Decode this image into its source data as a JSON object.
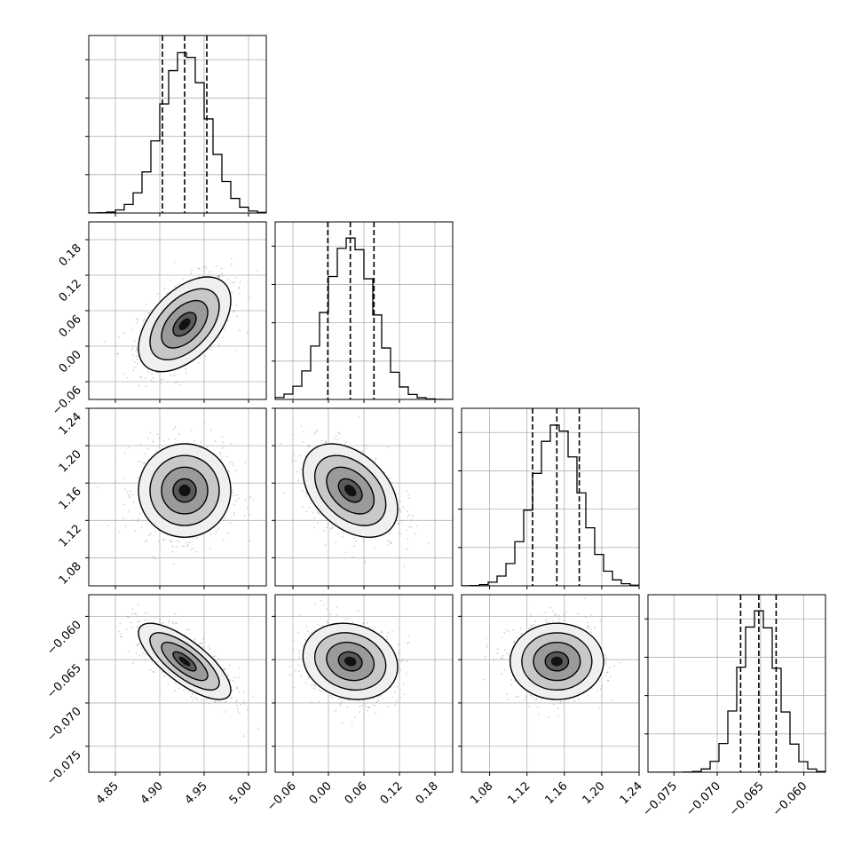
{
  "chart_data": {
    "type": "corner",
    "grid": true,
    "parameters": [
      {
        "range": [
          4.82,
          5.02
        ],
        "ticks": [
          4.85,
          4.9,
          4.95,
          5.0
        ],
        "tick_labels": [
          "4.85",
          "4.90",
          "4.95",
          "5.00"
        ],
        "mean": 4.928,
        "sd": 0.026,
        "quantiles": [
          4.903,
          4.928,
          4.953
        ]
      },
      {
        "range": [
          -0.09,
          0.21
        ],
        "ticks": [
          -0.06,
          0.0,
          0.06,
          0.12,
          0.18
        ],
        "tick_labels": [
          "−0.06",
          "0.00",
          "0.06",
          "0.12",
          "0.18"
        ],
        "mean": 0.037,
        "sd": 0.04,
        "quantiles": [
          -0.001,
          0.037,
          0.077
        ]
      },
      {
        "range": [
          1.05,
          1.24
        ],
        "ticks": [
          1.08,
          1.12,
          1.16,
          1.2,
          1.24
        ],
        "tick_labels": [
          "1.08",
          "1.12",
          "1.16",
          "1.20",
          "1.24"
        ],
        "mean": 1.152,
        "sd": 0.025,
        "quantiles": [
          1.126,
          1.152,
          1.176
        ]
      },
      {
        "range": [
          -0.078,
          -0.0575
        ],
        "ticks": [
          -0.075,
          -0.07,
          -0.065,
          -0.06
        ],
        "tick_labels": [
          "−0.075",
          "−0.070",
          "−0.065",
          "−0.060"
        ],
        "mean": -0.0652,
        "sd": 0.0022,
        "quantiles": [
          -0.0673,
          -0.0652,
          -0.0632
        ]
      }
    ],
    "correlations": {
      "1-0": 0.5,
      "2-0": 0.0,
      "2-1": -0.4,
      "3-0": -0.75,
      "3-1": -0.15,
      "3-2": 0.0
    },
    "contour_levels_sigma": [
      0.5,
      1.0,
      1.5,
      2.0
    ]
  }
}
